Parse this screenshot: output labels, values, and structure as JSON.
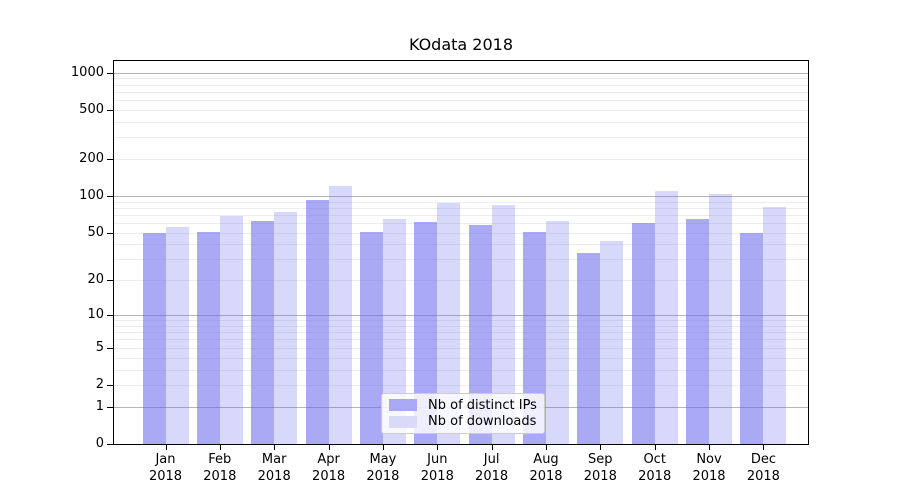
{
  "figure": {
    "background_color": "#ffffff",
    "text_color": "#000000"
  },
  "chart_data": {
    "type": "bar",
    "title": "KOdata 2018",
    "categories": [
      "Jan 2018",
      "Feb 2018",
      "Mar 2018",
      "Apr 2018",
      "May 2018",
      "Jun 2018",
      "Jul 2018",
      "Aug 2018",
      "Sep 2018",
      "Oct 2018",
      "Nov 2018",
      "Dec 2018"
    ],
    "series": [
      {
        "name": "Nb of distinct IPs",
        "values": [
          50,
          51,
          62,
          92,
          51,
          61,
          58,
          51,
          34,
          60,
          65,
          50
        ],
        "fill_color": "rgba(100,100,235,0.55)",
        "swatch_color": "#a9a9f3"
      },
      {
        "name": "Nb of downloads",
        "values": [
          56,
          69,
          74,
          120,
          65,
          88,
          85,
          62,
          43,
          109,
          104,
          81
        ],
        "fill_color": "rgba(100,100,235,0.25)",
        "swatch_color": "#d9d9fa"
      }
    ],
    "xlabel": "",
    "ylabel": "",
    "yscale": "log10(1+v)",
    "yticks": [
      0,
      1,
      2,
      5,
      10,
      20,
      50,
      100,
      200,
      500,
      1000
    ],
    "ylim": [
      0,
      1240
    ],
    "grid": "both",
    "legend_position": "lower center",
    "major_grid_color": "#b6b6b6",
    "minor_grid_color": "#ededf0",
    "spine_color": "#000000"
  }
}
